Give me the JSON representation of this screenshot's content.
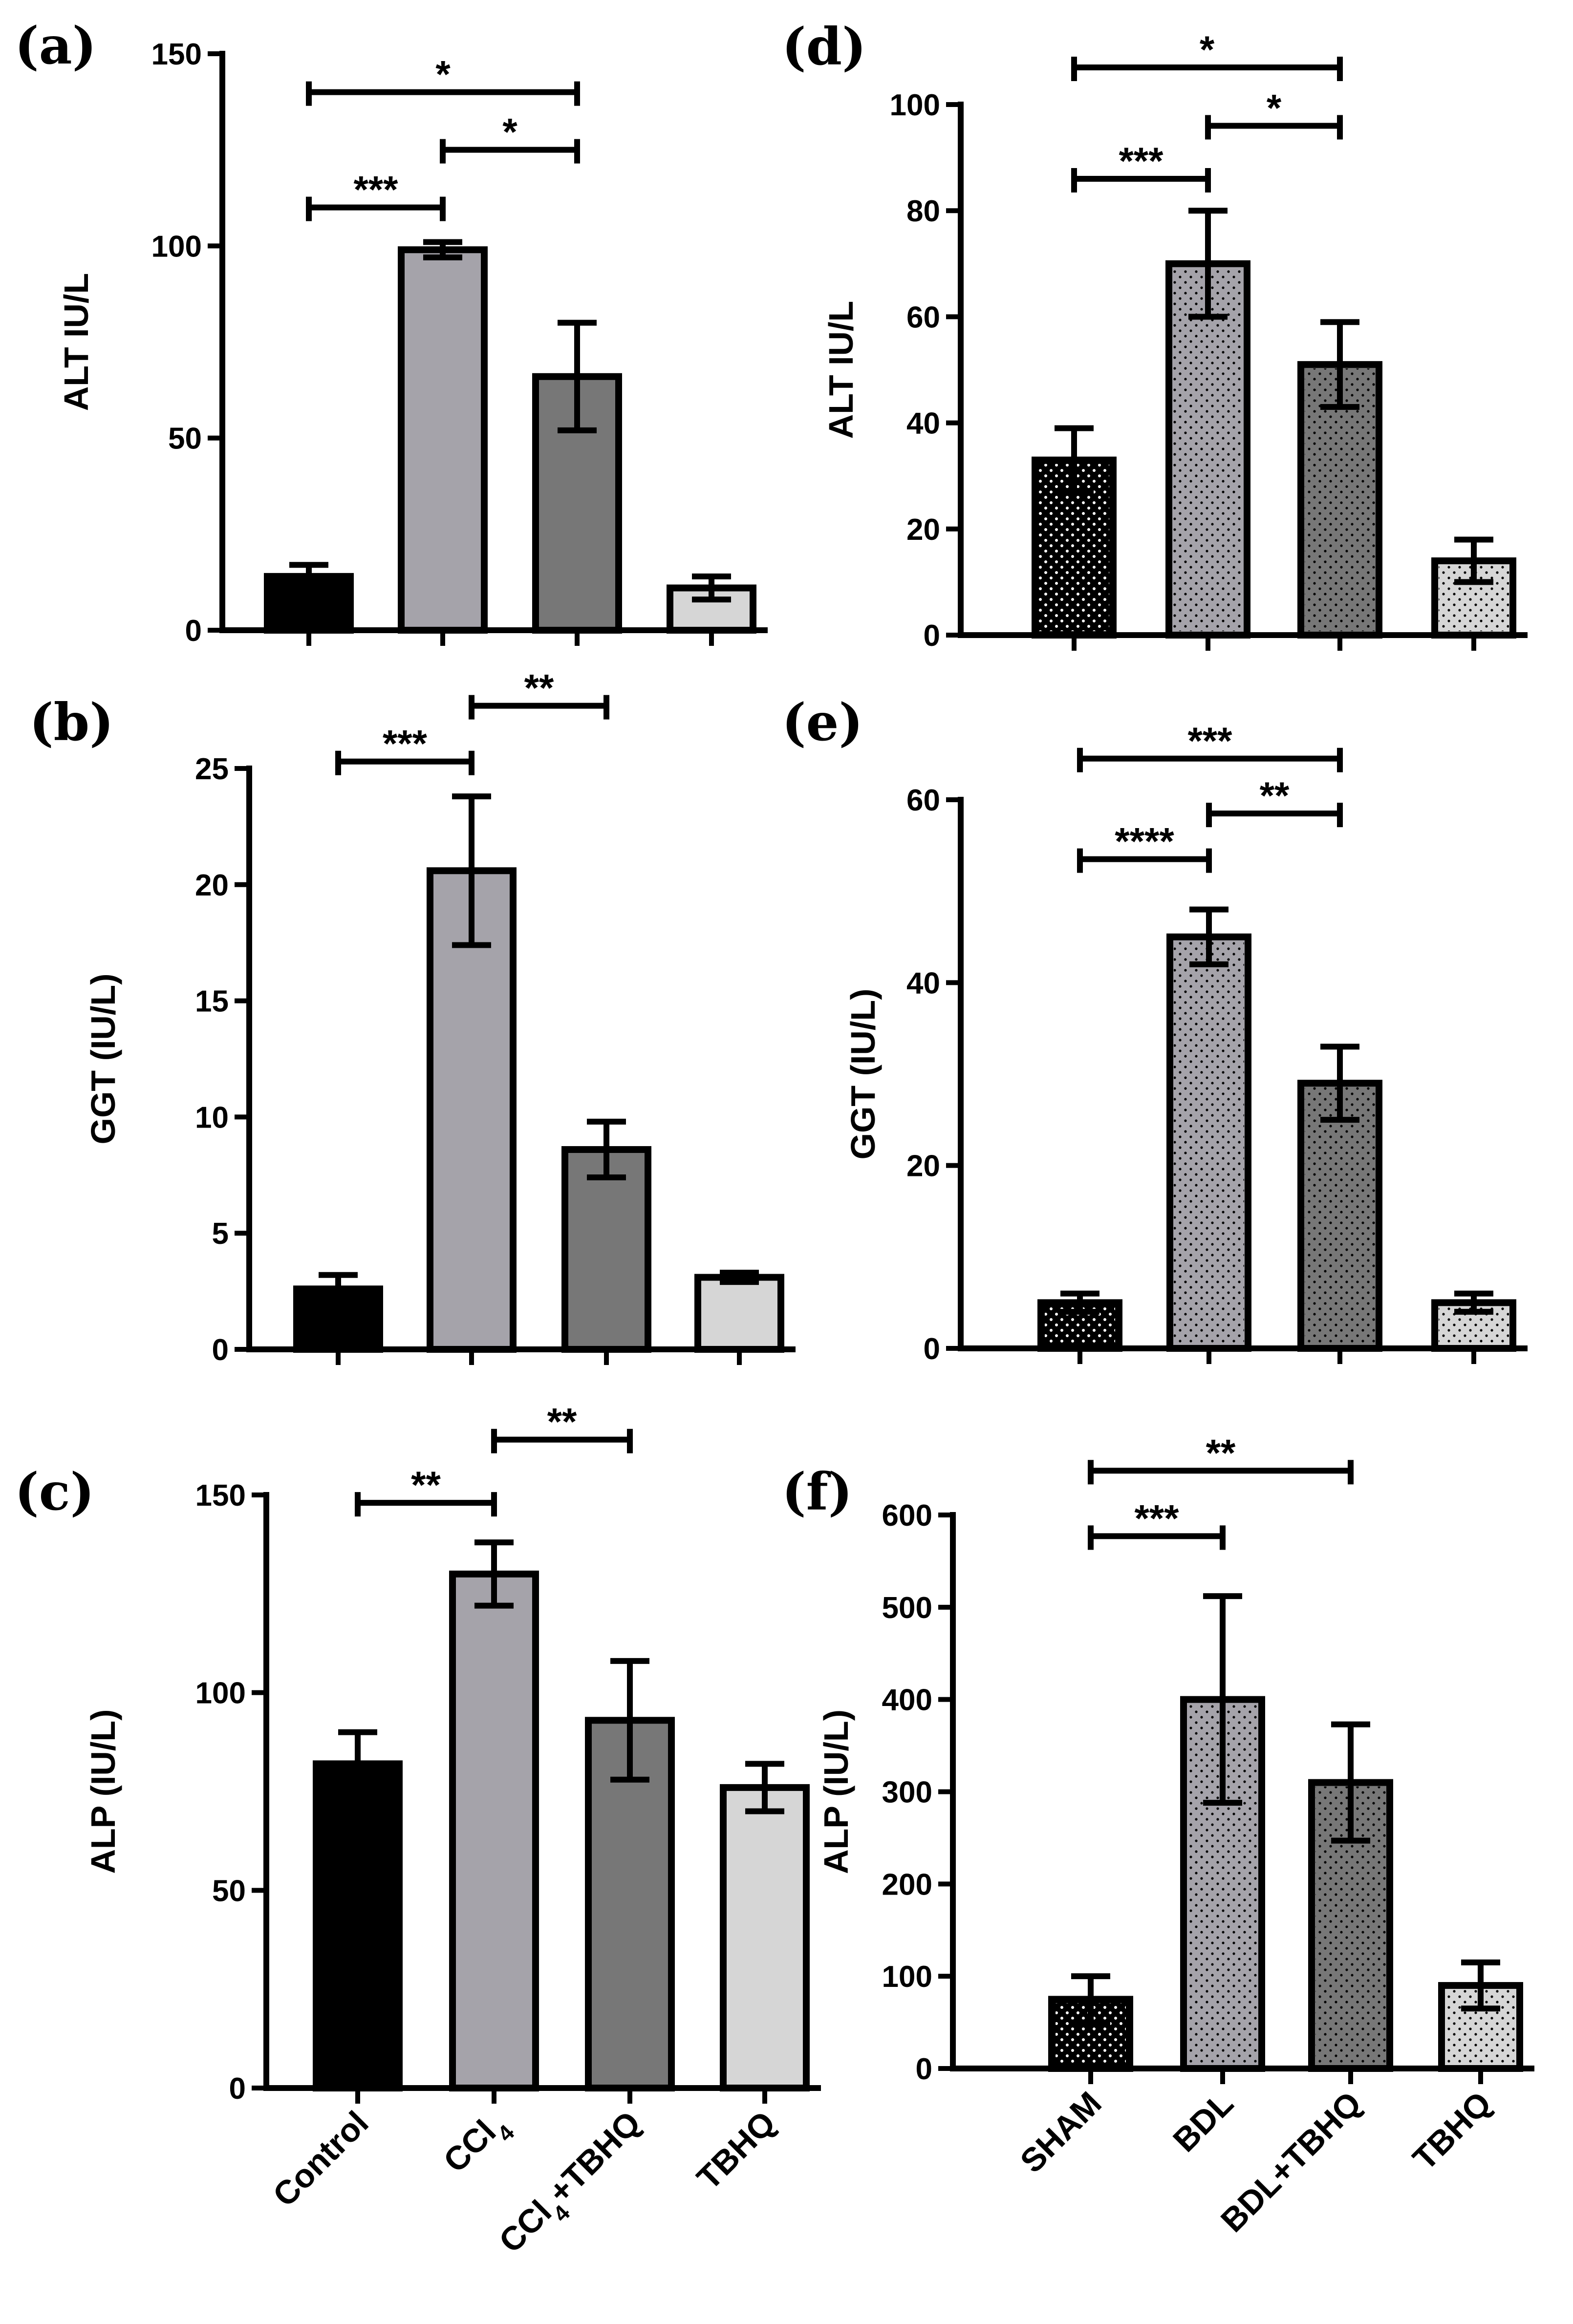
{
  "chart_data": [
    {
      "panel": "(a)",
      "type": "bar",
      "pattern": "solid",
      "ylabel": "ALT IU/L",
      "ylim": [
        0,
        150
      ],
      "yticks": [
        0,
        50,
        100,
        150
      ],
      "categories": [
        "Control",
        "CCl4",
        "CCl4+TBHQ",
        "TBHQ"
      ],
      "values": [
        14,
        99,
        66,
        11
      ],
      "errors": [
        3,
        2,
        14,
        3
      ],
      "colors": [
        "#000000",
        "#a5a3aa",
        "#777777",
        "#d6d6d6"
      ],
      "brackets": [
        {
          "from": 0,
          "to": 2,
          "level": 140,
          "label": "*"
        },
        {
          "from": 1,
          "to": 2,
          "level": 125,
          "label": "*"
        },
        {
          "from": 0,
          "to": 1,
          "level": 110,
          "label": "***"
        }
      ]
    },
    {
      "panel": "(b)",
      "type": "bar",
      "pattern": "solid",
      "ylabel": "GGT (IU/L)",
      "ylim": [
        0,
        25
      ],
      "yticks": [
        0,
        5,
        10,
        15,
        20,
        25
      ],
      "categories": [
        "Control",
        "CCl4",
        "CCl4+TBHQ",
        "TBHQ"
      ],
      "values": [
        2.6,
        20.6,
        8.6,
        3.1
      ],
      "errors": [
        0.6,
        3.2,
        1.2,
        0.2
      ],
      "colors": [
        "#000000",
        "#a5a3aa",
        "#777777",
        "#d6d6d6"
      ],
      "brackets": [
        {
          "from": 1,
          "to": 2,
          "level": 27.7,
          "label": "**"
        },
        {
          "from": 0,
          "to": 1,
          "level": 25.3,
          "label": "***"
        }
      ]
    },
    {
      "panel": "(c)",
      "type": "bar",
      "pattern": "solid",
      "ylabel": "ALP (IU/L)",
      "ylim": [
        0,
        150
      ],
      "yticks": [
        0,
        50,
        100,
        150
      ],
      "categories": [
        "Control",
        "CCl4",
        "CCl4+TBHQ",
        "TBHQ"
      ],
      "values": [
        82,
        130,
        93,
        76
      ],
      "errors": [
        8,
        8,
        15,
        6
      ],
      "colors": [
        "#000000",
        "#a5a3aa",
        "#777777",
        "#d6d6d6"
      ],
      "brackets": [
        {
          "from": 1,
          "to": 2,
          "level": 164,
          "label": "**"
        },
        {
          "from": 0,
          "to": 1,
          "level": 148,
          "label": "**"
        }
      ]
    },
    {
      "panel": "(d)",
      "type": "bar",
      "pattern": "dotted",
      "ylabel": "ALT IU/L",
      "ylim": [
        0,
        100
      ],
      "yticks": [
        0,
        20,
        40,
        60,
        80,
        100
      ],
      "categories": [
        "SHAM",
        "BDL",
        "BDL+TBHQ",
        "TBHQ"
      ],
      "values": [
        33,
        70,
        51,
        14
      ],
      "errors": [
        6,
        10,
        8,
        4
      ],
      "colors": [
        "#000000",
        "#a5a3aa",
        "#777777",
        "#d6d6d6"
      ],
      "brackets": [
        {
          "from": 0,
          "to": 2,
          "level": 107,
          "label": "*"
        },
        {
          "from": 1,
          "to": 2,
          "level": 96,
          "label": "*"
        },
        {
          "from": 0,
          "to": 1,
          "level": 86,
          "label": "***"
        }
      ]
    },
    {
      "panel": "(e)",
      "type": "bar",
      "pattern": "dotted",
      "ylabel": "GGT (IU/L)",
      "ylim": [
        0,
        60
      ],
      "yticks": [
        0,
        20,
        40,
        60
      ],
      "categories": [
        "SHAM",
        "BDL",
        "BDL+TBHQ",
        "TBHQ"
      ],
      "values": [
        5,
        45,
        29,
        5
      ],
      "errors": [
        1,
        3,
        4,
        1
      ],
      "colors": [
        "#000000",
        "#a5a3aa",
        "#777777",
        "#d6d6d6"
      ],
      "brackets": [
        {
          "from": 0,
          "to": 2,
          "level": 64.5,
          "label": "***"
        },
        {
          "from": 1,
          "to": 2,
          "level": 58.5,
          "label": "**"
        },
        {
          "from": 0,
          "to": 1,
          "level": 53.5,
          "label": "****"
        }
      ]
    },
    {
      "panel": "(f)",
      "type": "bar",
      "pattern": "dotted",
      "ylabel": "ALP (IU/L)",
      "ylim": [
        0,
        600
      ],
      "yticks": [
        0,
        100,
        200,
        300,
        400,
        500,
        600
      ],
      "categories": [
        "SHAM",
        "BDL",
        "BDL+TBHQ",
        "TBHQ"
      ],
      "values": [
        75,
        400,
        310,
        90
      ],
      "errors": [
        25,
        112,
        63,
        25
      ],
      "colors": [
        "#000000",
        "#a5a3aa",
        "#777777",
        "#d6d6d6"
      ],
      "brackets": [
        {
          "from": 0,
          "to": 2,
          "level": 648,
          "label": "**"
        },
        {
          "from": 0,
          "to": 1,
          "level": 577,
          "label": "***"
        }
      ]
    }
  ],
  "x_labels_left": [
    {
      "main": "Control",
      "sub": "",
      "tail": ""
    },
    {
      "main": "CCl",
      "sub": "4",
      "tail": ""
    },
    {
      "main": "CCl",
      "sub": "4",
      "tail": "+TBHQ"
    },
    {
      "main": "TBHQ",
      "sub": "",
      "tail": ""
    }
  ],
  "x_labels_right": [
    {
      "main": "SHAM",
      "sub": "",
      "tail": ""
    },
    {
      "main": "BDL",
      "sub": "",
      "tail": ""
    },
    {
      "main": "BDL+TBHQ",
      "sub": "",
      "tail": ""
    },
    {
      "main": "TBHQ",
      "sub": "",
      "tail": ""
    }
  ]
}
